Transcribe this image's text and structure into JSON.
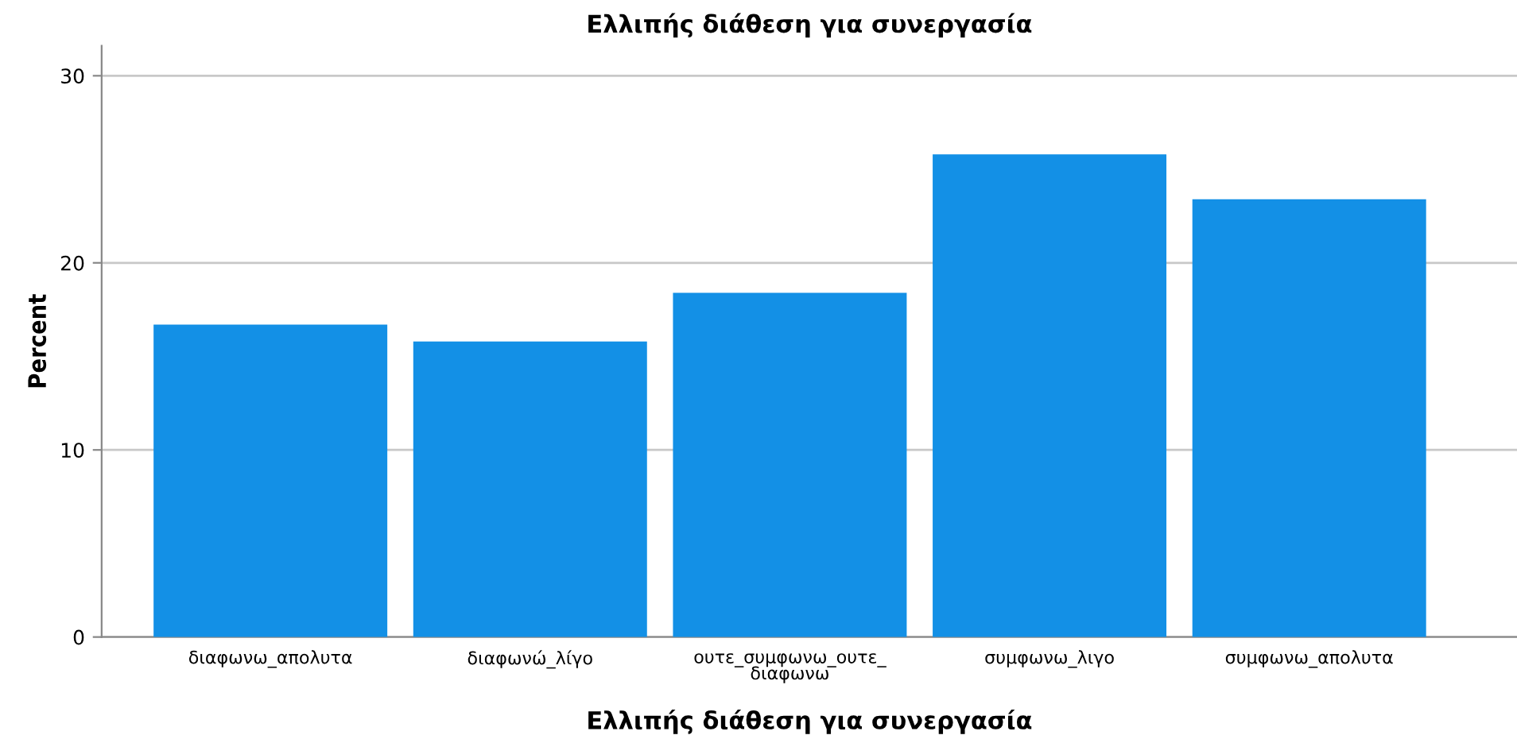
{
  "chart_data": {
    "type": "bar",
    "title": "Ελλιπής διάθεση για συνεργασία",
    "xlabel": "Ελλιπής διάθεση για συνεργασία",
    "ylabel": "Percent",
    "categories": [
      "διαφωνω_απολυτα",
      "διαφωνώ_λίγο",
      "ουτε_συμφωνω_ουτε_\nδιαφωνω",
      "συμφωνω_λιγο",
      "συμφωνω_απολυτα"
    ],
    "values": [
      16.7,
      15.8,
      18.4,
      25.8,
      23.4
    ],
    "color": "#1390e6",
    "ylim": [
      0,
      31.6
    ],
    "yticks": [
      0,
      10,
      20,
      30
    ],
    "grid": "y"
  }
}
